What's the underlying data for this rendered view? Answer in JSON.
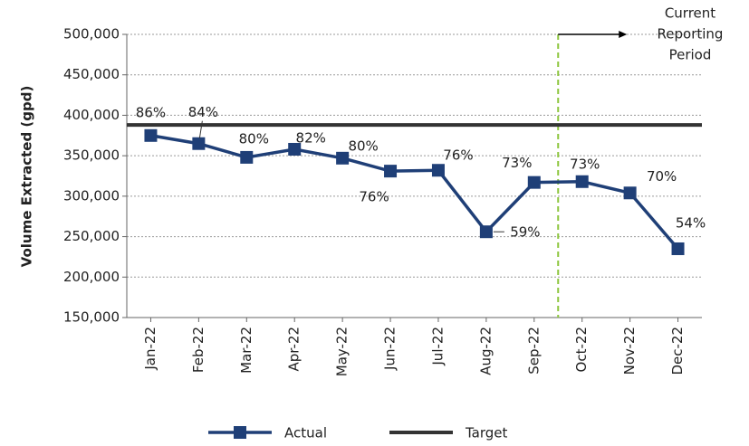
{
  "chart_data": {
    "type": "line",
    "y_axis_label": "Volume Extracted (gpd)",
    "categories": [
      "Jan-22",
      "Feb-22",
      "Mar-22",
      "Apr-22",
      "May-22",
      "Jun-22",
      "Jul-22",
      "Aug-22",
      "Sep-22",
      "Oct-22",
      "Nov-22",
      "Dec-22"
    ],
    "series": [
      {
        "name": "Actual",
        "color": "#1f3f77",
        "values": [
          375000,
          365000,
          348000,
          358000,
          347000,
          331000,
          332000,
          256000,
          317000,
          318000,
          304000,
          235000
        ],
        "point_labels": [
          "86%",
          "84%",
          "80%",
          "82%",
          "80%",
          "76%",
          "76%",
          "59%",
          "73%",
          "73%",
          "70%",
          "54%"
        ]
      },
      {
        "name": "Target",
        "color": "#333333",
        "values": [
          388000,
          388000,
          388000,
          388000,
          388000,
          388000,
          388000,
          388000,
          388000,
          388000,
          388000,
          388000
        ]
      }
    ],
    "ylim": [
      150000,
      500000
    ],
    "yticks": [
      {
        "value": 150000,
        "label": "150,000"
      },
      {
        "value": 200000,
        "label": "200,000"
      },
      {
        "value": 250000,
        "label": "250,000"
      },
      {
        "value": 300000,
        "label": "300,000"
      },
      {
        "value": 350000,
        "label": "350,000"
      },
      {
        "value": 400000,
        "label": "400,000"
      },
      {
        "value": 450000,
        "label": "450,000"
      },
      {
        "value": 500000,
        "label": "500,000"
      }
    ],
    "grid": true,
    "annotation": [
      "Current",
      "Reporting",
      "Period"
    ],
    "annotation_color": "#8dc63f"
  }
}
